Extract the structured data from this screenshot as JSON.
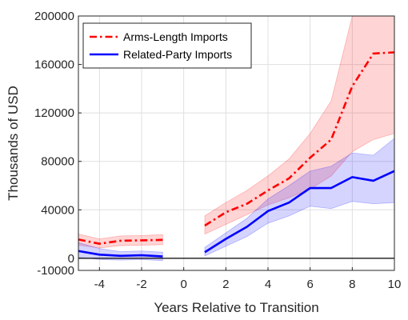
{
  "chart_data": {
    "type": "line",
    "xlabel": "Years Relative to Transition",
    "ylabel": "Thousands of USD",
    "xlim": [
      -5,
      10
    ],
    "ylim": [
      -10000,
      200000
    ],
    "xticks": [
      "-4",
      "-2",
      "0",
      "2",
      "4",
      "6",
      "8",
      "10"
    ],
    "yticks": [
      "200000",
      "160000",
      "120000",
      "80000",
      "40000",
      "0",
      "-10000"
    ],
    "grid": true,
    "legend_position": "top-left",
    "zero_line": true,
    "series": [
      {
        "name": "Arms-Length Imports",
        "color": "#ff0000",
        "line_style": "dash-dot",
        "segments": [
          {
            "x": [
              -5,
              -4,
              -3,
              -2,
              -1
            ],
            "y": [
              15500,
              12000,
              14500,
              14800,
              15200
            ],
            "lower": [
              11000,
              8500,
              10500,
              10800,
              11200
            ],
            "upper": [
              20000,
              16000,
              18500,
              18800,
              19500
            ]
          },
          {
            "x": [
              1,
              2,
              3,
              4,
              5,
              6,
              7,
              8,
              9,
              10
            ],
            "y": [
              27000,
              38000,
              45000,
              56000,
              66000,
              83000,
              98000,
              142000,
              169000,
              170000
            ],
            "lower": [
              20000,
              28000,
              36000,
              44000,
              50000,
              57000,
              68000,
              88000,
              98000,
              103000
            ],
            "upper": [
              35000,
              46000,
              56000,
              68000,
              82000,
              103000,
              130000,
              200000,
              200000,
              200000
            ]
          }
        ]
      },
      {
        "name": "Related-Party Imports",
        "color": "#0000ff",
        "line_style": "solid",
        "segments": [
          {
            "x": [
              -5,
              -4,
              -3,
              -2,
              -1
            ],
            "y": [
              6000,
              3000,
              2000,
              2500,
              1500
            ],
            "lower": [
              1000,
              -1000,
              -1500,
              -1000,
              -2000
            ],
            "upper": [
              13000,
              8000,
              5500,
              6000,
              5000
            ]
          },
          {
            "x": [
              1,
              2,
              3,
              4,
              5,
              6,
              7,
              8,
              9,
              10
            ],
            "y": [
              5000,
              16000,
              26000,
              39000,
              46000,
              58000,
              58000,
              67000,
              64000,
              72000
            ],
            "lower": [
              2000,
              10000,
              18000,
              29000,
              35000,
              43000,
              41000,
              47000,
              45000,
              46000
            ],
            "upper": [
              9000,
              21000,
              33000,
              49000,
              60000,
              72000,
              76000,
              87000,
              85000,
              99000
            ]
          }
        ]
      }
    ]
  }
}
